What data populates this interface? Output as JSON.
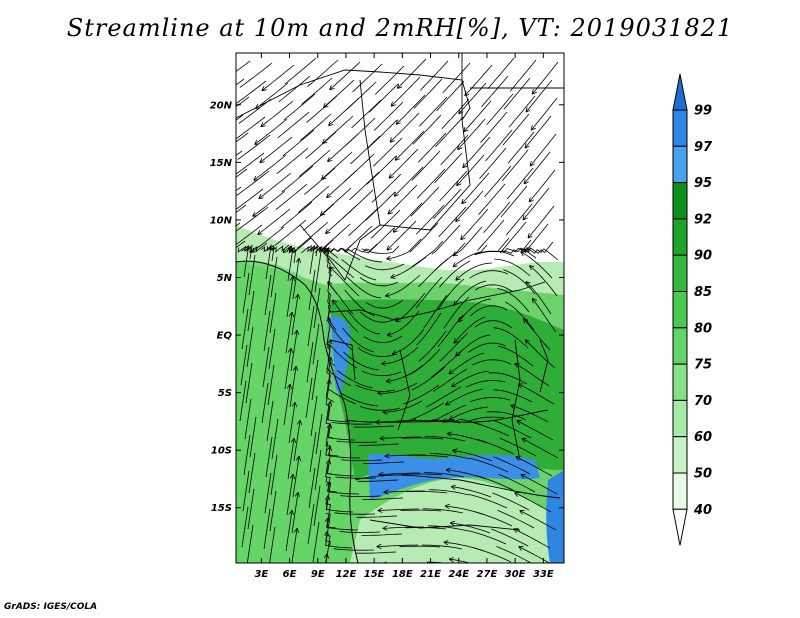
{
  "title": "Streamline at 10m and 2mRH[%], VT: 2019031821",
  "credit": "GrADS: IGES/COLA",
  "map": {
    "lat_labels": [
      "20N",
      "15N",
      "10N",
      "5N",
      "EQ",
      "5S",
      "10S",
      "15S"
    ],
    "lon_labels": [
      "3E",
      "6E",
      "9E",
      "12E",
      "15E",
      "18E",
      "21E",
      "24E",
      "27E",
      "30E",
      "33E"
    ],
    "lat_values": [
      20,
      15,
      10,
      5,
      0,
      -5,
      -10,
      -15
    ],
    "lon_values": [
      3,
      6,
      9,
      12,
      15,
      18,
      21,
      24,
      27,
      30,
      33
    ],
    "lon_range": [
      0.3,
      35.2
    ],
    "lat_range": [
      -19.8,
      24.5
    ]
  },
  "colorbar": {
    "levels": [
      "99",
      "97",
      "95",
      "92",
      "90",
      "85",
      "80",
      "75",
      "70",
      "60",
      "50",
      "40"
    ],
    "colors": [
      "#1e6fd0",
      "#2f86e0",
      "#4aa2ef",
      "#0e8f1c",
      "#1fa42a",
      "#33b83c",
      "#4ac84f",
      "#63d568",
      "#85e088",
      "#a6eaa8",
      "#c6f2c6",
      "#e6fae6",
      "#ffffff"
    ]
  },
  "fill_colors": {
    "green_light": "#b6ecb4",
    "green_mid": "#6cd26a",
    "green_dark": "#2fae37",
    "blue": "#3b8fe6"
  }
}
